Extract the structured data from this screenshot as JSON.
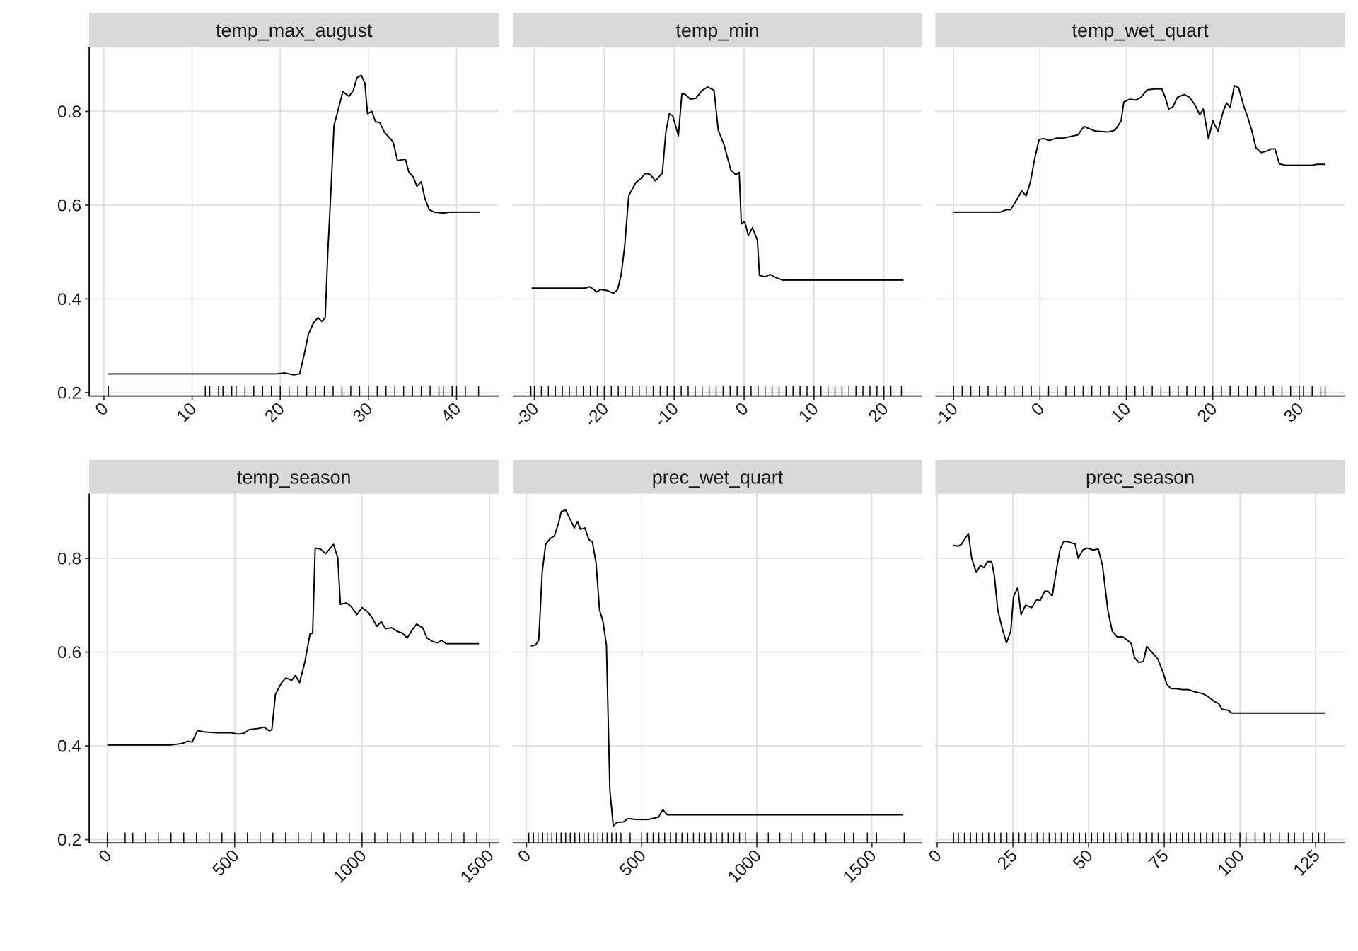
{
  "chart_data": [
    {
      "type": "line",
      "title": "temp_max_august",
      "color": "#000000",
      "grid": true,
      "x": [
        0.5,
        19.5,
        20.5,
        21,
        21.5,
        22.2,
        22.7,
        23.2,
        23.8,
        24.3,
        24.7,
        25.1,
        25.4,
        25.8,
        26.1,
        27.1,
        27.8,
        28.3,
        28.7,
        29.2,
        29.6,
        29.9,
        30.4,
        30.8,
        31.3,
        31.8,
        32.8,
        33.3,
        34.2,
        34.6,
        35.1,
        35.5,
        36.0,
        36.4,
        36.9,
        37.5,
        38.5,
        39.2,
        42.6
      ],
      "values": [
        0.24,
        0.24,
        0.242,
        0.24,
        0.238,
        0.24,
        0.28,
        0.325,
        0.35,
        0.36,
        0.352,
        0.36,
        0.5,
        0.65,
        0.77,
        0.842,
        0.832,
        0.845,
        0.872,
        0.877,
        0.86,
        0.795,
        0.8,
        0.778,
        0.776,
        0.756,
        0.735,
        0.695,
        0.698,
        0.67,
        0.66,
        0.64,
        0.65,
        0.615,
        0.59,
        0.585,
        0.583,
        0.585,
        0.585
      ],
      "rug": [
        0.5,
        11.5,
        12,
        13,
        13.5,
        14.5,
        15,
        16,
        17,
        18,
        19,
        20,
        21,
        22,
        23,
        24,
        25,
        26,
        27,
        28,
        29,
        30,
        31,
        32,
        33,
        34,
        35,
        36,
        37,
        38,
        38.5,
        39.5,
        40,
        41,
        42.5
      ],
      "xlim": [
        -1.67,
        44.8
      ],
      "xticks": [
        0,
        10,
        20,
        30,
        40
      ],
      "ylim": [
        0.193,
        0.938
      ],
      "yticks": [
        0.2,
        0.4,
        0.6,
        0.8
      ]
    },
    {
      "type": "line",
      "title": "temp_min",
      "color": "#000000",
      "grid": true,
      "x": [
        -30.4,
        -22.7,
        -22.1,
        -21.5,
        -21.1,
        -20.5,
        -19.6,
        -18.7,
        -18.1,
        -17.6,
        -17.1,
        -16.5,
        -15.5,
        -14.9,
        -14.1,
        -13.4,
        -12.7,
        -11.7,
        -11.2,
        -10.7,
        -10.2,
        -9.4,
        -8.9,
        -8.4,
        -7.7,
        -6.9,
        -6.0,
        -5.2,
        -4.3,
        -3.7,
        -2.9,
        -1.9,
        -1.2,
        -0.7,
        -0.4,
        0.1,
        0.6,
        1.2,
        1.9,
        2.2,
        3.0,
        3.7,
        4.6,
        5.5,
        22.8
      ],
      "values": [
        0.423,
        0.423,
        0.426,
        0.42,
        0.415,
        0.42,
        0.418,
        0.412,
        0.42,
        0.45,
        0.51,
        0.62,
        0.648,
        0.655,
        0.668,
        0.665,
        0.652,
        0.668,
        0.755,
        0.795,
        0.79,
        0.748,
        0.838,
        0.836,
        0.826,
        0.828,
        0.845,
        0.852,
        0.845,
        0.76,
        0.73,
        0.675,
        0.665,
        0.67,
        0.56,
        0.565,
        0.535,
        0.552,
        0.525,
        0.45,
        0.447,
        0.452,
        0.445,
        0.44,
        0.44
      ],
      "rug": [
        -30.5,
        -30,
        -29,
        -28,
        -27,
        -26,
        -25,
        -24,
        -23,
        -22,
        -21,
        -20,
        -19,
        -18,
        -17,
        -16,
        -15,
        -14,
        -13,
        -12,
        -11,
        -10,
        -9,
        -8,
        -7,
        -6,
        -5,
        -4,
        -3,
        -2,
        -1,
        0,
        1,
        2,
        3,
        4,
        5,
        6,
        7,
        8,
        9,
        10,
        11,
        12,
        13,
        14,
        15,
        16,
        17,
        18,
        19,
        20,
        21,
        22.5
      ],
      "xlim": [
        -33.1,
        25.5
      ],
      "xticks": [
        -30,
        -20,
        -10,
        0,
        10,
        20
      ],
      "ylim": [
        0.193,
        0.938
      ],
      "yticks": [
        0.2,
        0.4,
        0.6,
        0.8
      ]
    },
    {
      "type": "line",
      "title": "temp_wet_quart",
      "color": "#000000",
      "grid": true,
      "x": [
        -10.0,
        -4.6,
        -3.9,
        -3.4,
        -2.9,
        -2.1,
        -1.6,
        -1.1,
        -0.6,
        -0.1,
        0.4,
        1.1,
        1.9,
        2.7,
        4.4,
        5.1,
        5.7,
        6.4,
        7.1,
        7.9,
        8.7,
        9.4,
        9.7,
        10.4,
        11.1,
        11.7,
        12.4,
        13.4,
        14.1,
        14.5,
        14.9,
        15.4,
        15.9,
        16.7,
        17.3,
        17.9,
        18.5,
        18.9,
        19.5,
        20.0,
        20.6,
        21.2,
        21.6,
        22.0,
        22.5,
        23.0,
        23.6,
        24.0,
        24.5,
        25.0,
        25.6,
        26.2,
        26.8,
        27.2,
        27.7,
        28.4,
        31.5,
        32.0,
        33.0
      ],
      "values": [
        0.585,
        0.585,
        0.59,
        0.59,
        0.605,
        0.63,
        0.62,
        0.65,
        0.7,
        0.74,
        0.742,
        0.738,
        0.743,
        0.743,
        0.75,
        0.768,
        0.763,
        0.758,
        0.757,
        0.756,
        0.76,
        0.78,
        0.82,
        0.826,
        0.824,
        0.83,
        0.846,
        0.848,
        0.848,
        0.83,
        0.805,
        0.81,
        0.83,
        0.836,
        0.83,
        0.815,
        0.793,
        0.805,
        0.742,
        0.78,
        0.758,
        0.8,
        0.818,
        0.808,
        0.855,
        0.85,
        0.81,
        0.79,
        0.76,
        0.722,
        0.712,
        0.715,
        0.72,
        0.72,
        0.688,
        0.685,
        0.685,
        0.687,
        0.687
      ],
      "rug": [
        -10,
        -9,
        -8,
        -7,
        -6,
        -5,
        -4,
        -3,
        -2,
        -1,
        0,
        1,
        2,
        3,
        4,
        5,
        6,
        7,
        8,
        9,
        10,
        11,
        12,
        13,
        14,
        15,
        16,
        17,
        18,
        19,
        20,
        21,
        22,
        23,
        24,
        25,
        26,
        27,
        28,
        29,
        30,
        30.5,
        31.5,
        32.5,
        33
      ],
      "xlim": [
        -12.1,
        35.3
      ],
      "xticks": [
        -10,
        0,
        10,
        20,
        30
      ],
      "ylim": [
        0.193,
        0.938
      ],
      "yticks": [
        0.2,
        0.4,
        0.6,
        0.8
      ]
    },
    {
      "type": "line",
      "title": "temp_season",
      "color": "#000000",
      "grid": true,
      "x": [
        0,
        248,
        293,
        316,
        333,
        354,
        378,
        429,
        486,
        514,
        537,
        558,
        592,
        616,
        636,
        646,
        660,
        684,
        701,
        724,
        738,
        755,
        776,
        796,
        806,
        816,
        837,
        857,
        888,
        905,
        915,
        939,
        956,
        980,
        1000,
        1024,
        1041,
        1058,
        1075,
        1092,
        1116,
        1136,
        1160,
        1177,
        1194,
        1214,
        1238,
        1255,
        1279,
        1296,
        1313,
        1330,
        1459
      ],
      "values": [
        0.402,
        0.402,
        0.405,
        0.41,
        0.408,
        0.433,
        0.43,
        0.428,
        0.428,
        0.425,
        0.427,
        0.435,
        0.437,
        0.44,
        0.432,
        0.435,
        0.51,
        0.535,
        0.545,
        0.54,
        0.55,
        0.535,
        0.58,
        0.64,
        0.64,
        0.822,
        0.82,
        0.81,
        0.83,
        0.8,
        0.702,
        0.705,
        0.698,
        0.68,
        0.695,
        0.685,
        0.672,
        0.655,
        0.665,
        0.65,
        0.652,
        0.645,
        0.64,
        0.63,
        0.645,
        0.66,
        0.652,
        0.63,
        0.622,
        0.62,
        0.625,
        0.618,
        0.618
      ],
      "rug": [
        0,
        70,
        100,
        150,
        200,
        250,
        300,
        350,
        400,
        450,
        500,
        550,
        600,
        650,
        700,
        750,
        800,
        850,
        900,
        950,
        1000,
        1050,
        1100,
        1150,
        1200,
        1250,
        1300,
        1350,
        1400,
        1450
      ],
      "xlim": [
        -71,
        1537
      ],
      "xticks": [
        0,
        500,
        1000,
        1500
      ],
      "ylim": [
        0.193,
        0.938
      ],
      "yticks": [
        0.2,
        0.4,
        0.6,
        0.8
      ]
    },
    {
      "type": "line",
      "title": "prec_wet_quart",
      "color": "#000000",
      "grid": true,
      "x": [
        19,
        38,
        53,
        68,
        83,
        102,
        121,
        139,
        151,
        170,
        188,
        207,
        222,
        234,
        253,
        271,
        286,
        302,
        317,
        332,
        347,
        362,
        377,
        392,
        422,
        441,
        479,
        528,
        573,
        592,
        611,
        1636
      ],
      "values": [
        0.613,
        0.615,
        0.625,
        0.77,
        0.83,
        0.842,
        0.848,
        0.875,
        0.9,
        0.903,
        0.885,
        0.865,
        0.878,
        0.862,
        0.865,
        0.84,
        0.835,
        0.79,
        0.69,
        0.665,
        0.615,
        0.305,
        0.228,
        0.237,
        0.238,
        0.245,
        0.243,
        0.243,
        0.248,
        0.264,
        0.253,
        0.253
      ],
      "rug": [
        10,
        30,
        50,
        70,
        90,
        110,
        130,
        150,
        170,
        190,
        210,
        230,
        250,
        270,
        290,
        310,
        330,
        350,
        370,
        390,
        410,
        450,
        500,
        525,
        550,
        575,
        600,
        625,
        650,
        675,
        700,
        725,
        750,
        775,
        800,
        825,
        850,
        875,
        900,
        925,
        950,
        1000,
        1050,
        1100,
        1150,
        1200,
        1250,
        1300,
        1380,
        1420,
        1480,
        1520,
        1640
      ],
      "xlim": [
        -60,
        1719
      ],
      "xticks": [
        0,
        500,
        1000,
        1500
      ],
      "ylim": [
        0.193,
        0.938
      ],
      "yticks": [
        0.2,
        0.4,
        0.6,
        0.8
      ]
    },
    {
      "type": "line",
      "title": "prec_season",
      "color": "#000000",
      "grid": true,
      "x": [
        5.4,
        6.9,
        8.0,
        10.3,
        11.4,
        12.9,
        14.3,
        15.4,
        16.6,
        18.0,
        18.9,
        20.0,
        21.5,
        22.9,
        24.3,
        25.2,
        26.6,
        27.7,
        29.2,
        31.2,
        32.9,
        34.0,
        35.5,
        36.6,
        38.0,
        39.5,
        40.6,
        41.8,
        43.2,
        44.6,
        45.5,
        46.6,
        48.1,
        49.5,
        51.5,
        53.2,
        54.6,
        56.4,
        57.8,
        59.5,
        61.2,
        62.9,
        64.1,
        65.2,
        66.6,
        68.1,
        69.2,
        70.9,
        72.9,
        74.7,
        75.8,
        77.2,
        78.9,
        80.9,
        83.0,
        85.2,
        87.5,
        89.5,
        91.5,
        93.0,
        94.1,
        96.1,
        97.3,
        128.1
      ],
      "values": [
        0.828,
        0.826,
        0.83,
        0.853,
        0.8,
        0.77,
        0.785,
        0.78,
        0.793,
        0.793,
        0.762,
        0.69,
        0.65,
        0.62,
        0.645,
        0.718,
        0.738,
        0.68,
        0.7,
        0.695,
        0.712,
        0.71,
        0.73,
        0.73,
        0.72,
        0.78,
        0.82,
        0.836,
        0.836,
        0.832,
        0.832,
        0.8,
        0.818,
        0.822,
        0.818,
        0.82,
        0.785,
        0.688,
        0.645,
        0.632,
        0.633,
        0.625,
        0.618,
        0.588,
        0.578,
        0.58,
        0.612,
        0.6,
        0.585,
        0.555,
        0.532,
        0.522,
        0.522,
        0.52,
        0.52,
        0.515,
        0.512,
        0.505,
        0.495,
        0.49,
        0.478,
        0.476,
        0.47,
        0.47
      ],
      "rug": [
        5.4,
        7,
        9,
        11,
        13,
        15,
        17,
        19,
        21,
        23,
        25,
        27,
        29,
        31,
        33,
        35,
        37,
        39,
        41,
        43,
        45,
        47,
        49,
        51,
        53,
        55,
        57,
        59,
        61,
        63,
        65,
        67,
        69,
        71,
        73,
        75,
        77,
        79,
        81,
        83,
        85,
        87,
        89,
        91,
        93,
        95,
        97,
        100,
        102,
        105,
        108,
        110,
        113,
        116,
        118,
        121,
        124,
        126,
        128
      ],
      "xlim": [
        -0.6,
        134.7
      ],
      "xticks": [
        0,
        25,
        50,
        75,
        100,
        125
      ],
      "ylim": [
        0.193,
        0.938
      ],
      "yticks": [
        0.2,
        0.4,
        0.6,
        0.8
      ]
    }
  ]
}
